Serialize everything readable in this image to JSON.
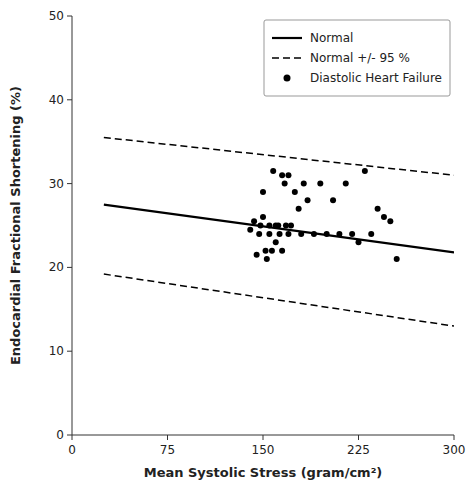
{
  "chart_data": {
    "type": "line",
    "xlabel": "Mean Systolic Stress (gram/cm²)",
    "ylabel": "Endocardial Fractional Shortening (%)",
    "xlim": [
      0,
      300
    ],
    "ylim": [
      0,
      50
    ],
    "xticks": [
      0,
      75,
      150,
      225,
      300
    ],
    "yticks": [
      0,
      10,
      20,
      30,
      40,
      50
    ],
    "grid": false,
    "legend": "upper right",
    "series": [
      {
        "name": "Normal",
        "type": "line",
        "line_style": "solid",
        "color": "#000000",
        "x": [
          25,
          300
        ],
        "values": [
          27.5,
          21.8
        ]
      },
      {
        "name": "Normal +/- 95 %",
        "type": "line",
        "line_style": "dashed",
        "color": "#000000",
        "x": [
          25,
          300
        ],
        "upper": [
          35.5,
          31.0
        ],
        "lower": [
          19.2,
          13.0
        ]
      },
      {
        "name": "Diastolic Heart Failure",
        "type": "scatter",
        "marker": "circle",
        "color": "#000000",
        "x": [
          140,
          143,
          145,
          147,
          148,
          150,
          150,
          152,
          153,
          155,
          155,
          157,
          158,
          160,
          160,
          162,
          163,
          165,
          165,
          167,
          168,
          170,
          170,
          172,
          175,
          178,
          180,
          182,
          185,
          190,
          195,
          200,
          205,
          210,
          215,
          220,
          225,
          230,
          235,
          240,
          245,
          250,
          255
        ],
        "values": [
          24.5,
          25.5,
          21.5,
          24,
          25,
          29,
          26,
          22,
          21,
          25,
          24,
          22,
          31.5,
          25,
          23,
          25,
          24,
          22,
          31,
          30,
          25,
          24,
          31,
          25,
          29,
          27,
          24,
          30,
          28,
          24,
          30,
          24,
          28,
          24,
          30,
          24,
          23,
          31.5,
          24,
          27,
          26,
          25.5,
          21
        ]
      }
    ]
  }
}
